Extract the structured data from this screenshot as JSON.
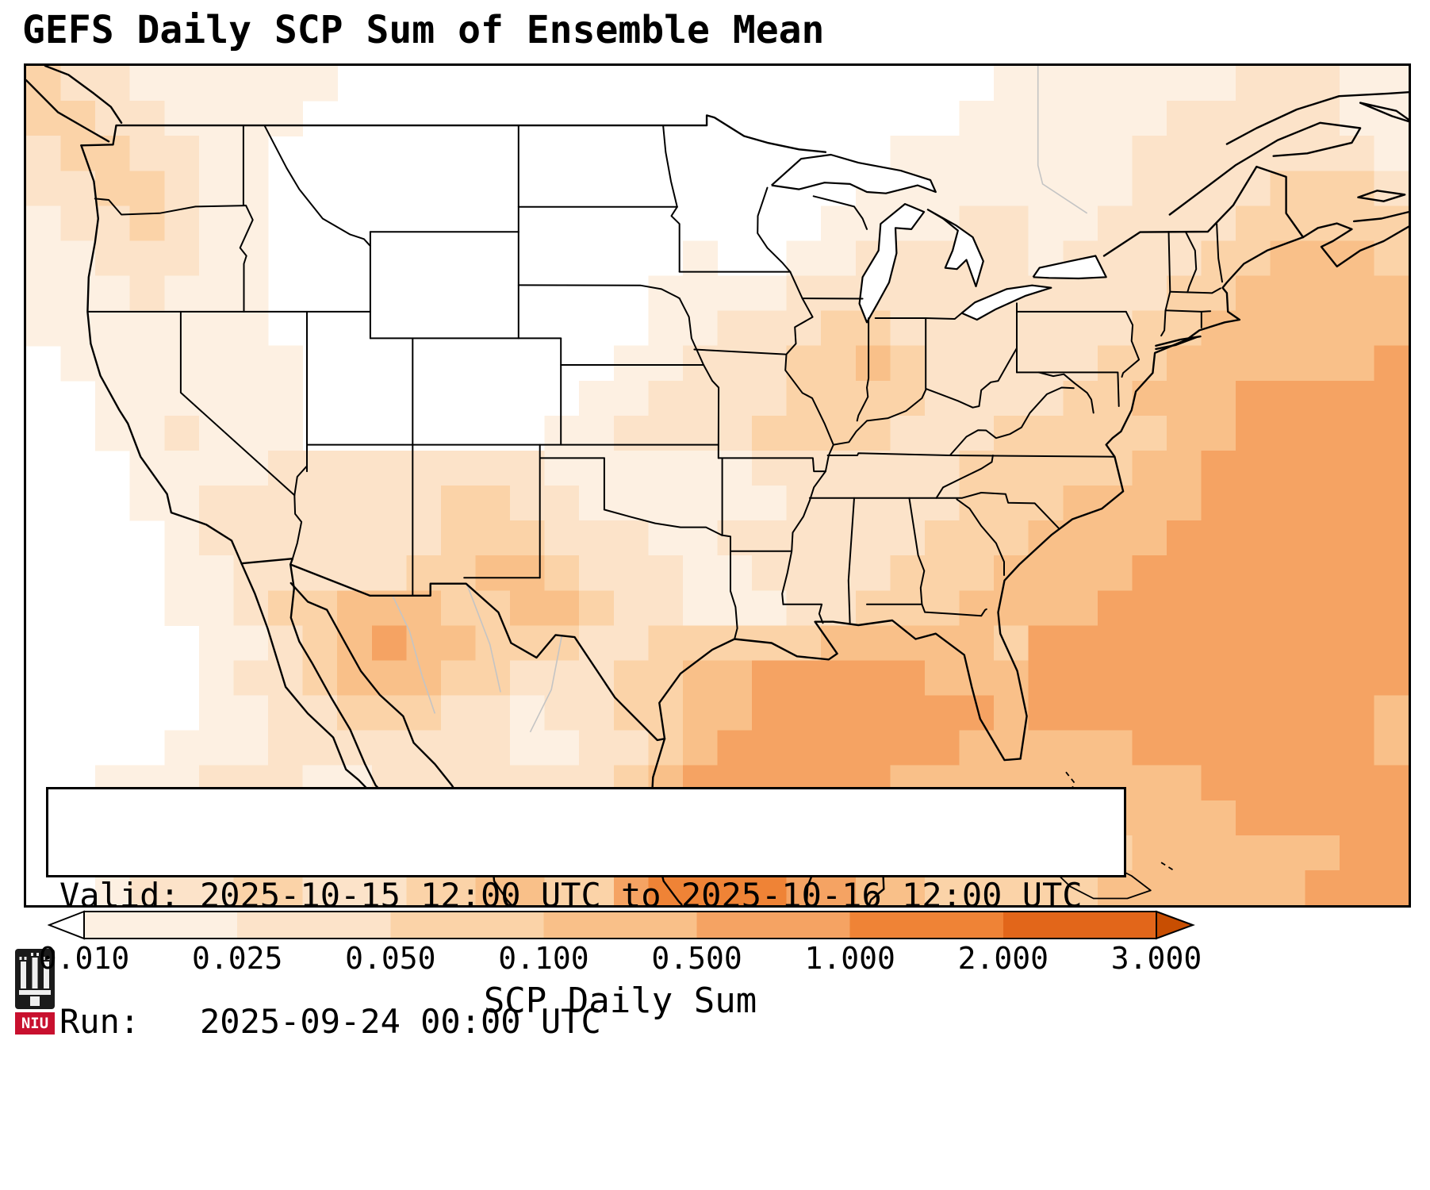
{
  "title": "GEFS Daily SCP Sum of Ensemble Mean",
  "info_box": {
    "valid_line": "Valid: 2025-10-15 12:00 UTC to 2025-10-16 12:00 UTC",
    "run_line": "Run:   2025-09-24 00:00 UTC"
  },
  "colorbar": {
    "label": "SCP Daily Sum",
    "ticks": [
      "0.010",
      "0.025",
      "0.050",
      "0.100",
      "0.500",
      "1.000",
      "2.000",
      "3.000"
    ]
  },
  "logo": {
    "text": "NIU"
  },
  "chart_data": {
    "type": "heatmap",
    "title": "GEFS Daily SCP Sum of Ensemble Mean",
    "colorbar_label": "SCP Daily Sum",
    "valid": "2025-10-15 12:00 UTC to 2025-10-16 12:00 UTC",
    "run": "2025-09-24 00:00 UTC",
    "levels": [
      0.01,
      0.025,
      0.05,
      0.1,
      0.5,
      1.0,
      2.0,
      3.0
    ],
    "bin_colors": [
      "#ffffff",
      "#fdf0e2",
      "#fce3c9",
      "#fbd3a8",
      "#f9c089",
      "#f5a363",
      "#ef8336",
      "#e2661a",
      "#c84e02"
    ],
    "under_color": "#ffffff",
    "over_color": "#c84e02",
    "legend_position": "bottom",
    "notable_maxima": [
      "Gulf of Mexico and western Atlantic offshore waters (~0.5-1.0)",
      "Sonora/Chihuahua in northwest Mexico (~0.1-1.0)",
      "scattered 0.05-0.5 over the Midwest, Southeast and west Texas/New Mexico"
    ],
    "grid": {
      "cols": 40,
      "rows": 24,
      "cell_encoding": "each digit is a color-bin index: 0 < 0.010, 1 = 0.010-0.025, 2 = 0.025-0.050, 3 = 0.050-0.100, 4 = 0.100-0.500, 5 = 0.500-1.000, 6 = 1.000-2.000, 7 = 2.000-3.000, 8 > 3.000",
      "rows_data": [
        [
          "3221111110",
          "0000000000",
          "0000000011",
          "1111122211"
        ],
        [
          "3322111100",
          "0000000000",
          "0000000111",
          "1112222211"
        ],
        [
          "2332211000",
          "0000000000",
          "0000011111",
          "1122222221"
        ],
        [
          "2233211000",
          "0000000000",
          "0000111111",
          "1122223332"
        ],
        [
          "1223211000",
          "0000000000",
          "0001111221",
          "1222233333"
        ],
        [
          "1122211000",
          "0000000001",
          "0011222221",
          "2222334443"
        ],
        [
          "1112111000",
          "0000000011",
          "1122222222",
          "2223344444"
        ],
        [
          "1111111000",
          "0000000011",
          "2223322222",
          "2233444444"
        ],
        [
          "0111111100",
          "0000000112",
          "2233432222",
          "2334444445"
        ],
        [
          "0011111100",
          "0000001122",
          "2233332222",
          "3344455555"
        ],
        [
          "0011211100",
          "0000011222",
          "2333322233",
          "3334455555"
        ],
        [
          "0001111222",
          "2222211111",
          "1222222333",
          "3344555555"
        ],
        [
          "0001122222",
          "2233221111",
          "1122222333",
          "4444555555"
        ],
        [
          "0000122222",
          "2233322211",
          "2222223334",
          "4445555555"
        ],
        [
          "0000112222",
          "2334432221",
          "1222233344",
          "4455555555"
        ],
        [
          "0000112334",
          "4433443221",
          "1122333444",
          "4555555555"
        ],
        [
          "0000011234",
          "5443332233",
          "3334444435",
          "5555555555"
        ],
        [
          "0000012234",
          "4433222334",
          "4555554445",
          "5555555555"
        ],
        [
          "0000011223",
          "3322122334",
          "4555555545",
          "5555555554"
        ],
        [
          "0000111222",
          "2222112234",
          "5555555444",
          "4455555554"
        ],
        [
          "0011122211",
          "2222222345",
          "5555544444",
          "4444555555"
        ],
        [
          "0011222221",
          "2223322345",
          "5554444444",
          "4444455555"
        ],
        [
          "0012222222",
          "2233433456",
          "6655444333",
          "3344444455"
        ],
        [
          "0012223322",
          "2334433566",
          "6655443333",
          "3444444555"
        ]
      ]
    }
  }
}
